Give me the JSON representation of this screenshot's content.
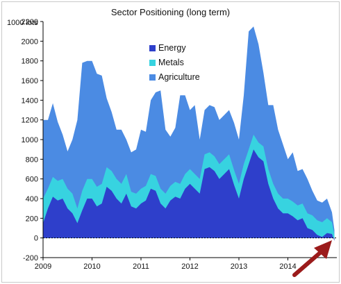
{
  "chart_data": {
    "type": "area",
    "stacked": true,
    "title": "Sector Positioning (long term)",
    "ylabel": "1000 lots",
    "xlabel": "",
    "ylim": [
      -200,
      2200
    ],
    "yticks": [
      -200,
      0,
      200,
      400,
      600,
      800,
      1000,
      1200,
      1400,
      1600,
      1800,
      2000,
      2200
    ],
    "xlim": [
      2009.0,
      2015.0
    ],
    "xticks": [
      {
        "value": 2009,
        "label": "2009"
      },
      {
        "value": 2010,
        "label": "2010"
      },
      {
        "value": 2011,
        "label": "2011"
      },
      {
        "value": 2012,
        "label": "2012"
      },
      {
        "value": 2013,
        "label": "2013"
      },
      {
        "value": 2014,
        "label": "2014"
      }
    ],
    "grid": false,
    "legend_position": "top-center",
    "x": [
      2009.0,
      2009.1,
      2009.2,
      2009.3,
      2009.4,
      2009.5,
      2009.6,
      2009.7,
      2009.8,
      2009.9,
      2010.0,
      2010.1,
      2010.2,
      2010.3,
      2010.4,
      2010.5,
      2010.6,
      2010.7,
      2010.8,
      2010.9,
      2011.0,
      2011.1,
      2011.2,
      2011.3,
      2011.4,
      2011.5,
      2011.6,
      2011.7,
      2011.8,
      2011.9,
      2012.0,
      2012.1,
      2012.2,
      2012.3,
      2012.4,
      2012.5,
      2012.6,
      2012.7,
      2012.8,
      2012.9,
      2013.0,
      2013.1,
      2013.2,
      2013.3,
      2013.4,
      2013.5,
      2013.6,
      2013.7,
      2013.8,
      2013.9,
      2014.0,
      2014.1,
      2014.2,
      2014.3,
      2014.4,
      2014.5,
      2014.6,
      2014.7,
      2014.8,
      2014.9,
      2014.95
    ],
    "series": [
      {
        "name": "Energy",
        "color": "#2e3fcb",
        "values": [
          150,
          300,
          420,
          380,
          400,
          300,
          250,
          150,
          280,
          400,
          400,
          320,
          350,
          520,
          480,
          400,
          350,
          450,
          320,
          300,
          350,
          380,
          500,
          480,
          350,
          300,
          380,
          420,
          400,
          500,
          550,
          500,
          450,
          700,
          720,
          680,
          600,
          650,
          700,
          540,
          400,
          600,
          750,
          900,
          820,
          780,
          550,
          400,
          300,
          250,
          250,
          220,
          180,
          200,
          100,
          80,
          30,
          10,
          50,
          40,
          -30
        ]
      },
      {
        "name": "Metals",
        "color": "#37d3e0",
        "values": [
          250,
          200,
          200,
          200,
          200,
          200,
          200,
          150,
          200,
          200,
          200,
          200,
          200,
          200,
          200,
          200,
          200,
          200,
          150,
          150,
          150,
          150,
          150,
          150,
          150,
          150,
          150,
          150,
          150,
          150,
          150,
          150,
          150,
          150,
          150,
          150,
          150,
          150,
          150,
          150,
          150,
          150,
          150,
          150,
          150,
          150,
          150,
          150,
          150,
          150,
          150,
          150,
          150,
          150,
          150,
          150,
          150,
          150,
          150,
          120,
          60
        ]
      },
      {
        "name": "Agriculture",
        "color": "#4b8be3",
        "values": [
          800,
          700,
          750,
          600,
          450,
          380,
          550,
          900,
          1300,
          1200,
          1200,
          1150,
          1100,
          700,
          600,
          500,
          550,
          350,
          400,
          450,
          600,
          550,
          750,
          850,
          1000,
          650,
          500,
          550,
          900,
          800,
          600,
          700,
          400,
          450,
          480,
          500,
          450,
          450,
          450,
          480,
          450,
          700,
          1200,
          1100,
          1000,
          750,
          650,
          800,
          650,
          550,
          400,
          500,
          350,
          350,
          350,
          250,
          200,
          200,
          200,
          100,
          50
        ]
      }
    ],
    "annotations": [
      "arrow-bottom-right"
    ]
  },
  "colors": {
    "arrow": "#9b1b1b",
    "axis": "#000000"
  }
}
